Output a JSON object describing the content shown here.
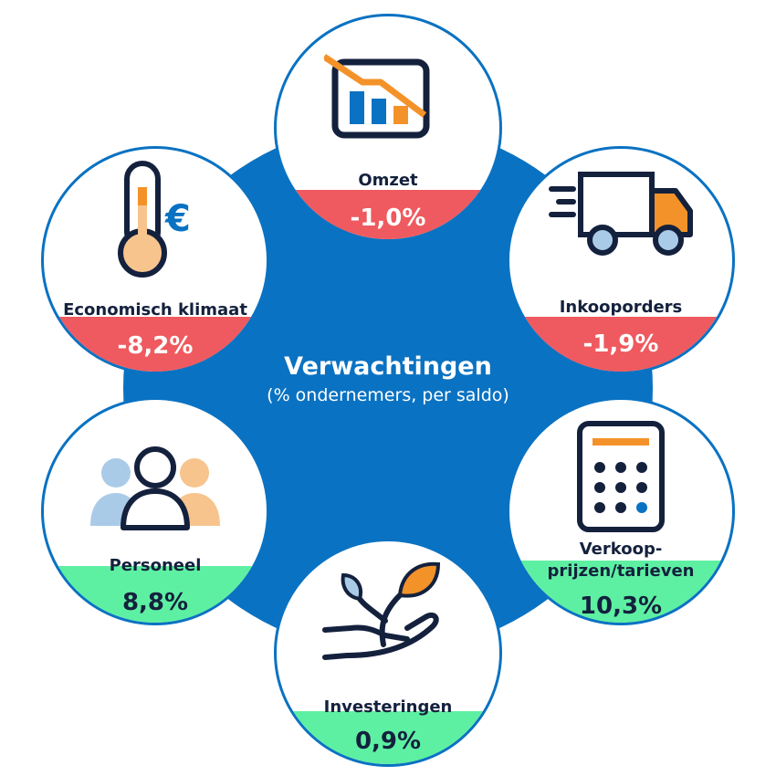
{
  "title": "Verwachtingen",
  "subtitle": "(% ondernemers, per saldo)",
  "colors": {
    "disc": "#0a72c2",
    "negative": "#ee5a5f",
    "positive": "#5ef0a2",
    "dark": "#14213d",
    "orange": "#f4922a",
    "lightblue": "#a9cbe8",
    "paleorange": "#f7c48e"
  },
  "items": [
    {
      "label": "Omzet",
      "value": "-1,0%",
      "trend": "negative",
      "icon": "declining-chart-icon"
    },
    {
      "label": "Inkooporders",
      "value": "-1,9%",
      "trend": "negative",
      "icon": "delivery-truck-icon"
    },
    {
      "label_line1": "Verkoop-",
      "label_line2": "prijzen/tarieven",
      "value": "10,3%",
      "trend": "positive",
      "icon": "calculator-icon"
    },
    {
      "label": "Investeringen",
      "value": "0,9%",
      "trend": "positive",
      "icon": "plant-in-hand-icon"
    },
    {
      "label": "Personeel",
      "value": "8,8%",
      "trend": "positive",
      "icon": "people-icon"
    },
    {
      "label": "Economisch klimaat",
      "value": "-8,2%",
      "trend": "negative",
      "icon": "thermometer-euro-icon"
    }
  ]
}
